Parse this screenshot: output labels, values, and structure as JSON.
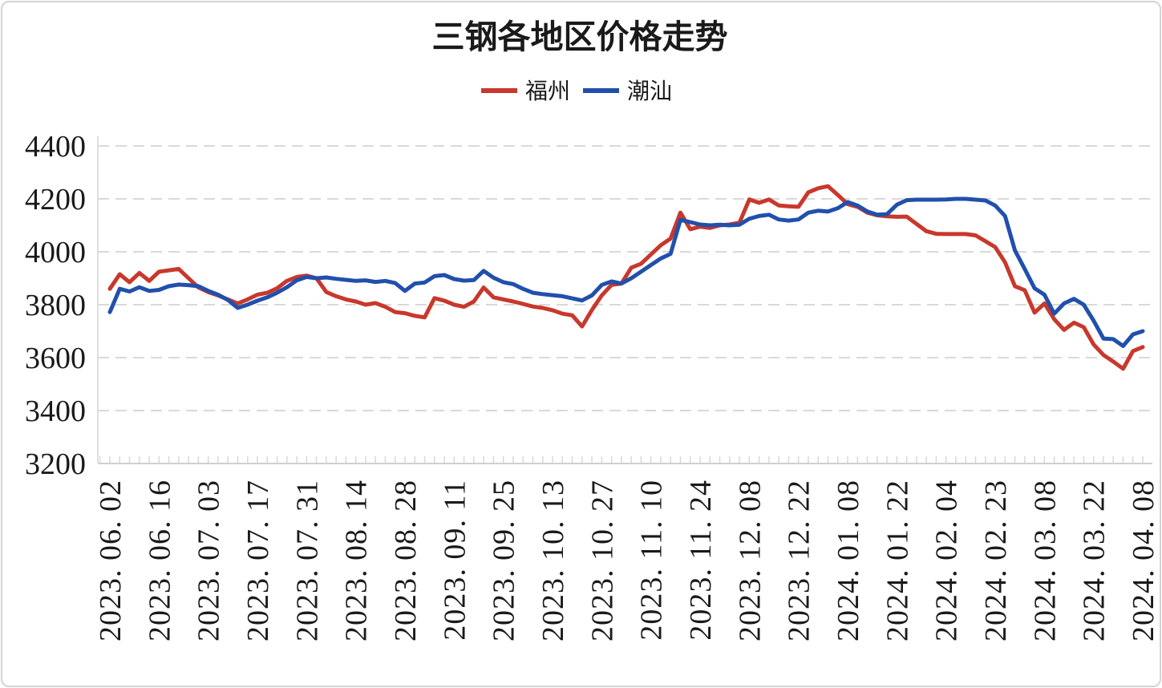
{
  "chart_data": {
    "type": "line",
    "title": "三钢各地区价格走势",
    "legend_position": "top-center",
    "grid": "dashed-horizontal",
    "ylim": [
      3200,
      4400
    ],
    "y_ticks": [
      4400,
      4200,
      4000,
      3800,
      3600,
      3400,
      3200
    ],
    "x_tick_labels": [
      "2023. 06. 02",
      "2023. 06. 16",
      "2023. 07. 03",
      "2023. 07. 17",
      "2023. 07. 31",
      "2023. 08. 14",
      "2023. 08. 28",
      "2023. 09. 11",
      "2023. 09. 25",
      "2023. 10. 13",
      "2023. 10. 27",
      "2023. 11. 10",
      "2023. 11. 24",
      "2023. 12. 08",
      "2023. 12. 22",
      "2024. 01. 08",
      "2024. 01. 22",
      "2024. 02. 04",
      "2024. 02. 23",
      "2024. 03. 08",
      "2024. 03. 22",
      "2024. 04. 08"
    ],
    "points_per_tick_interval": 5,
    "colors": {
      "fuzhou": "#c8382c",
      "chaoshan": "#2150ac",
      "grid": "#d9d9d9",
      "axis": "#d0d0d0",
      "text": "#1a1a1a"
    },
    "series": [
      {
        "name": "福州",
        "color": "#c8382c",
        "values": [
          3860,
          3915,
          3885,
          3920,
          3890,
          3925,
          3930,
          3935,
          3900,
          3865,
          3848,
          3835,
          3820,
          3805,
          3820,
          3838,
          3845,
          3862,
          3890,
          3905,
          3910,
          3900,
          3848,
          3832,
          3820,
          3812,
          3800,
          3806,
          3792,
          3772,
          3768,
          3758,
          3752,
          3825,
          3815,
          3800,
          3792,
          3812,
          3865,
          3828,
          3820,
          3812,
          3803,
          3793,
          3788,
          3779,
          3766,
          3760,
          3718,
          3780,
          3835,
          3875,
          3880,
          3940,
          3955,
          3990,
          4025,
          4050,
          4148,
          4085,
          4095,
          4090,
          4100,
          4103,
          4110,
          4198,
          4185,
          4198,
          4175,
          4172,
          4170,
          4225,
          4240,
          4248,
          4215,
          4180,
          4170,
          4148,
          4138,
          4134,
          4132,
          4133,
          4105,
          4078,
          4068,
          4067,
          4067,
          4067,
          4062,
          4040,
          4018,
          3960,
          3870,
          3855,
          3770,
          3805,
          3745,
          3705,
          3732,
          3715,
          3650,
          3610,
          3585,
          3558,
          3625,
          3640
        ]
      },
      {
        "name": "潮汕",
        "color": "#2150ac",
        "values": [
          3772,
          3860,
          3850,
          3866,
          3852,
          3856,
          3870,
          3876,
          3874,
          3870,
          3852,
          3838,
          3818,
          3788,
          3800,
          3815,
          3828,
          3845,
          3866,
          3892,
          3905,
          3900,
          3903,
          3898,
          3894,
          3890,
          3892,
          3886,
          3890,
          3882,
          3852,
          3880,
          3884,
          3908,
          3912,
          3897,
          3891,
          3893,
          3928,
          3902,
          3885,
          3878,
          3860,
          3845,
          3840,
          3836,
          3832,
          3824,
          3816,
          3835,
          3875,
          3888,
          3880,
          3900,
          3925,
          3950,
          3975,
          3992,
          4121,
          4112,
          4103,
          4100,
          4102,
          4100,
          4102,
          4125,
          4135,
          4140,
          4122,
          4118,
          4122,
          4148,
          4155,
          4152,
          4165,
          4188,
          4175,
          4152,
          4140,
          4142,
          4178,
          4195,
          4197,
          4197,
          4197,
          4198,
          4200,
          4200,
          4197,
          4194,
          4175,
          4135,
          4005,
          3935,
          3862,
          3838,
          3766,
          3805,
          3822,
          3800,
          3740,
          3672,
          3670,
          3644,
          3688,
          3700
        ]
      }
    ]
  }
}
